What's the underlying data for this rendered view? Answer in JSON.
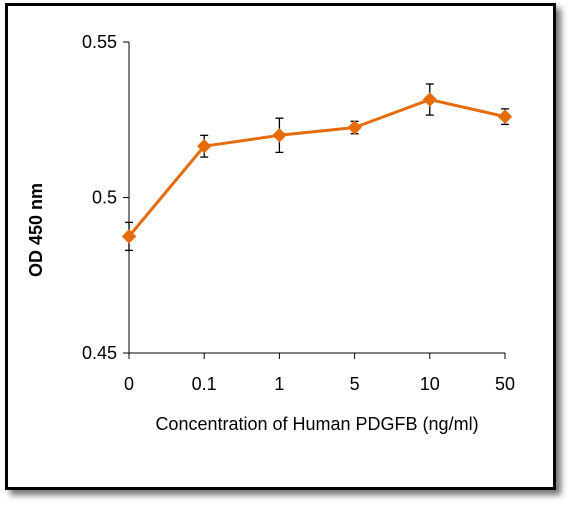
{
  "chart_data": {
    "type": "line",
    "categories": [
      "0",
      "0.1",
      "1",
      "5",
      "10",
      "50"
    ],
    "series": [
      {
        "values": [
          0.4875,
          0.5165,
          0.52,
          0.5225,
          0.5315,
          0.526
        ],
        "errors": [
          0.0045,
          0.0035,
          0.0055,
          0.002,
          0.005,
          0.0025
        ],
        "color": "#E46C0A"
      }
    ],
    "xlabel": "Concentration of Human PDGFB (ng/ml)",
    "ylabel": "OD  450 nm",
    "ylim": [
      0.45,
      0.55
    ],
    "yticks": [
      "0.45",
      "0.5",
      "0.55"
    ],
    "grid": false,
    "legend": "none"
  }
}
